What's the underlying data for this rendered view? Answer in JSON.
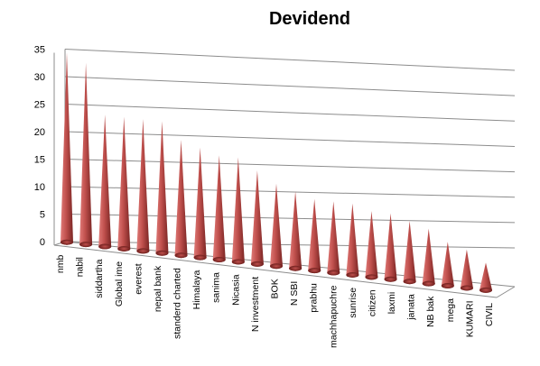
{
  "chart_data": {
    "type": "bar",
    "title": "Devidend",
    "xlabel": "",
    "ylabel": "",
    "ylim": [
      0,
      35
    ],
    "yticks": [
      0,
      5,
      10,
      15,
      20,
      25,
      30,
      35
    ],
    "grid": true,
    "legend": "none",
    "bar_shape": "cone",
    "bar_color": "#c0504d",
    "categories": [
      "nmb",
      "nabil",
      "siddartha",
      "Global ime",
      "everest",
      "nepal bank",
      "standerd charted",
      "Himalaya",
      "sanima",
      "Nicasia",
      "N investment",
      "BOK",
      "N SBI",
      "prabhu",
      "machhapuchre",
      "sunrise",
      "citizen",
      "laxmi",
      "janata",
      "NB bak",
      "mega",
      "KUMARI",
      "CIVIL"
    ],
    "values": [
      34,
      33,
      24,
      24,
      24,
      24,
      21,
      20,
      19,
      19,
      17,
      15,
      14,
      13,
      13,
      13,
      12,
      12,
      11,
      10,
      8,
      7,
      5
    ]
  }
}
